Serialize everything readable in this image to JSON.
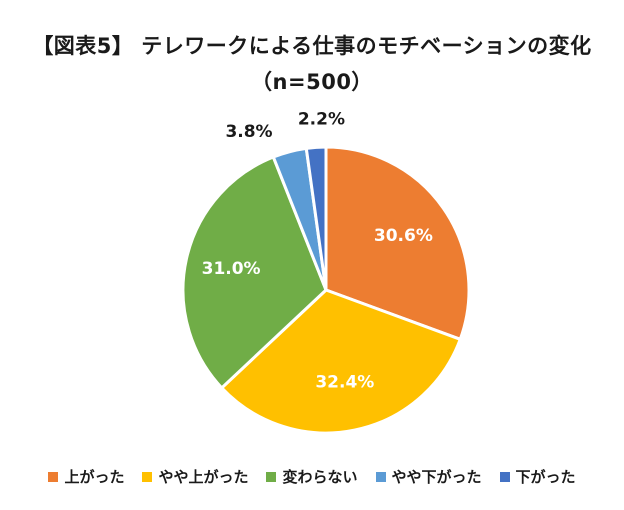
{
  "chart_data": {
    "type": "pie",
    "title": "【図表5】 テレワークによる仕事のモチベーションの変化",
    "subtitle": "（n=500）",
    "categories": [
      "上がった",
      "やや上がった",
      "変わらない",
      "やや下がった",
      "下がった"
    ],
    "values": [
      30.6,
      32.4,
      31.0,
      3.8,
      2.2
    ],
    "value_labels": [
      "30.6%",
      "32.4%",
      "31.0%",
      "3.8%",
      "2.2%"
    ],
    "colors": [
      "#ED7D31",
      "#FFC000",
      "#70AD47",
      "#5B9BD5",
      "#4472C4"
    ],
    "start_angle": "12 o'clock",
    "direction": "clockwise",
    "legend_position": "bottom"
  }
}
